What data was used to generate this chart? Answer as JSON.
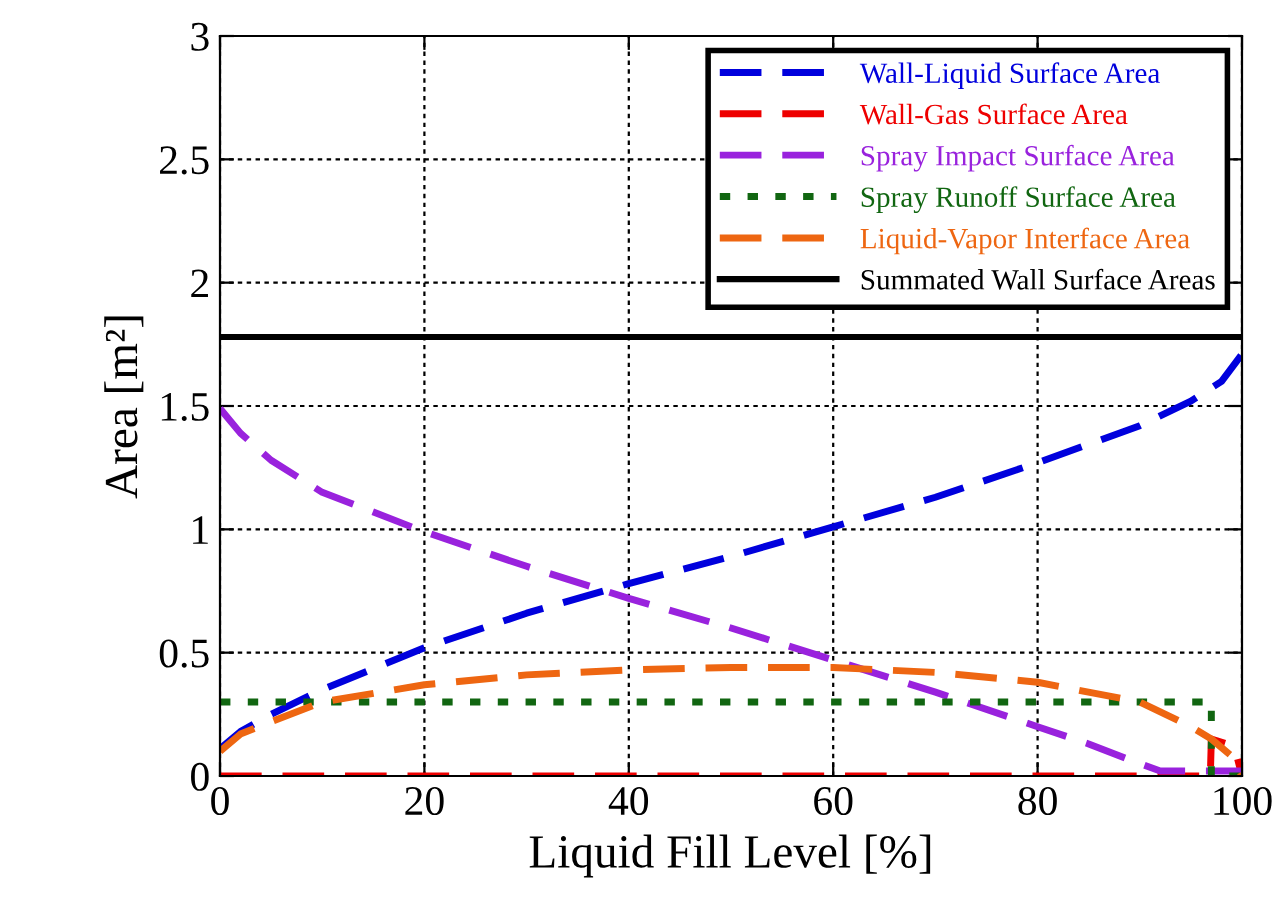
{
  "chart_data": {
    "type": "line",
    "xlabel": "Liquid Fill Level [%]",
    "ylabel": "Area [m²]",
    "xlim": [
      0,
      100
    ],
    "xticks": [
      0,
      20,
      40,
      60,
      80,
      100
    ],
    "ylim": [
      0,
      3
    ],
    "yticks": [
      0,
      0.5,
      1,
      1.5,
      2,
      2.5,
      3
    ],
    "grid": true,
    "legend": "top right",
    "marker": "none",
    "series": [
      {
        "name": "Wall-Liquid Surface Area",
        "color": "#0000dd",
        "line_style": "dashed",
        "x": [
          0,
          2,
          5,
          10,
          20,
          30,
          40,
          50,
          60,
          70,
          80,
          90,
          95,
          98,
          100
        ],
        "values": [
          0.11,
          0.18,
          0.25,
          0.35,
          0.52,
          0.66,
          0.78,
          0.89,
          1.01,
          1.13,
          1.27,
          1.42,
          1.52,
          1.6,
          1.71
        ]
      },
      {
        "name": "Wall-Gas Surface Area",
        "color": "#ee0000",
        "line_style": "dashed",
        "x": [
          0,
          96.9,
          97,
          98.5,
          99.5,
          100
        ],
        "values": [
          0,
          0,
          0.15,
          0.13,
          0.08,
          0
        ]
      },
      {
        "name": "Spray Impact Surface Area",
        "color": "#9922dd",
        "line_style": "dashed",
        "x": [
          0,
          2,
          5,
          10,
          20,
          30,
          40,
          50,
          60,
          70,
          80,
          85,
          90,
          92,
          100
        ],
        "values": [
          1.49,
          1.39,
          1.28,
          1.15,
          0.99,
          0.85,
          0.72,
          0.6,
          0.47,
          0.34,
          0.2,
          0.13,
          0.05,
          0.02,
          0.02
        ]
      },
      {
        "name": "Spray Runoff Surface Area",
        "color": "#116611",
        "line_style": "dotted",
        "x": [
          0,
          97,
          97,
          100
        ],
        "values": [
          0.3,
          0.3,
          0,
          0
        ]
      },
      {
        "name": "Liquid-Vapor Interface Area",
        "color": "#ee6611",
        "line_style": "dashed",
        "x": [
          0,
          2,
          5,
          10,
          20,
          30,
          40,
          50,
          60,
          70,
          80,
          90,
          95,
          97,
          99,
          100
        ],
        "values": [
          0.1,
          0.17,
          0.22,
          0.3,
          0.37,
          0.41,
          0.43,
          0.44,
          0.44,
          0.42,
          0.38,
          0.3,
          0.2,
          0.15,
          0.08,
          0
        ]
      },
      {
        "name": "Summated Wall Surface Areas",
        "color": "#000000",
        "line_style": "solid",
        "x": [
          0,
          100
        ],
        "values": [
          1.78,
          1.78
        ]
      }
    ]
  }
}
